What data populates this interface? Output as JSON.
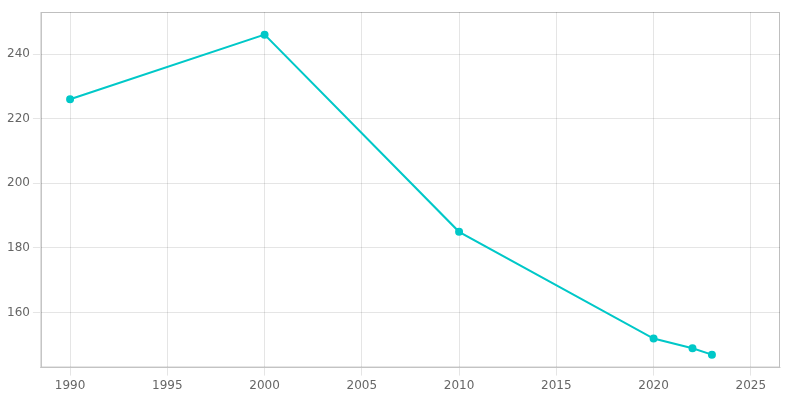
{
  "chart_data": {
    "type": "line",
    "x": [
      1990,
      2000,
      2010,
      2020,
      2022,
      2023
    ],
    "values": [
      226,
      246,
      185,
      152,
      149,
      147
    ],
    "color": "#00c8c8",
    "marker": "circle",
    "xlim": [
      1988.5,
      2026.5
    ],
    "xticks": [
      1990,
      1995,
      2000,
      2005,
      2010,
      2015,
      2020,
      2025
    ],
    "ylim": [
      143,
      253
    ],
    "yticks": [
      160,
      180,
      200,
      220,
      240
    ],
    "grid": true
  }
}
